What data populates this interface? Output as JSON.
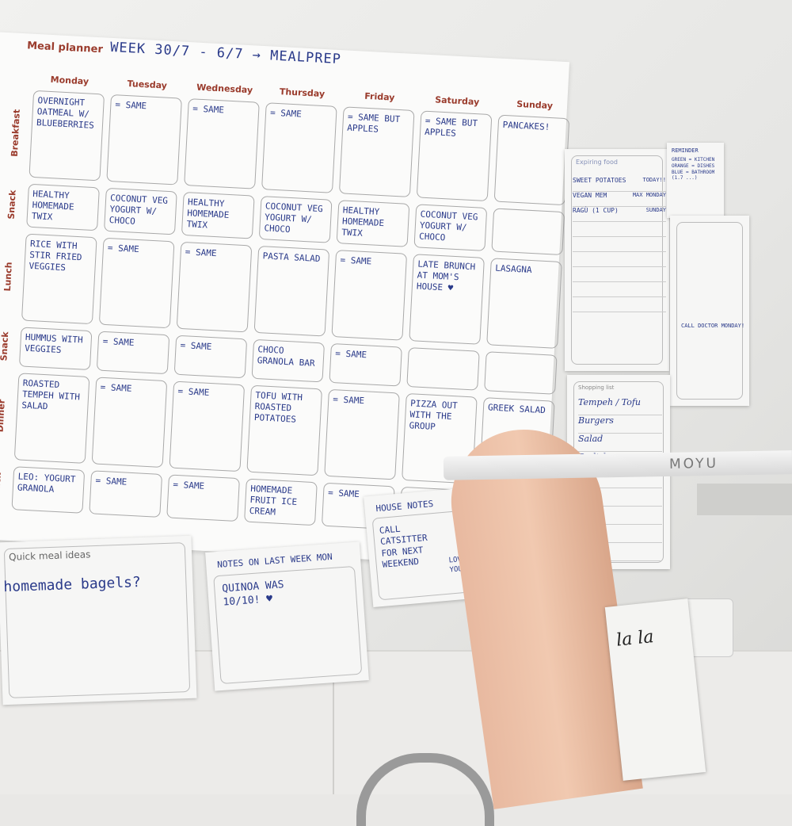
{
  "planner": {
    "title": "Meal planner",
    "week": "WEEK 30/7 - 6/7 → MEALPREP",
    "days": [
      "Monday",
      "Tuesday",
      "Wednesday",
      "Thursday",
      "Friday",
      "Saturday",
      "Sunday"
    ],
    "rows": [
      {
        "label": "Breakfast",
        "cells": [
          "Overnight oatmeal w/ blueberries",
          "= same",
          "= same",
          "= same",
          "= same but apples",
          "= same but apples",
          "Pancakes!"
        ]
      },
      {
        "label": "Snack",
        "cells": [
          "Healthy homemade twix",
          "Coconut veg yogurt w/ choco",
          "Healthy homemade twix",
          "Coconut veg yogurt w/ choco",
          "Healthy homemade twix",
          "Coconut veg yogurt w/ choco",
          ""
        ]
      },
      {
        "label": "Lunch",
        "cells": [
          "Rice with stir fried veggies",
          "= same",
          "= same",
          "Pasta salad",
          "= same",
          "Late brunch at mom's house ♥",
          "Lasagna"
        ]
      },
      {
        "label": "Snack",
        "cells": [
          "Hummus with veggies",
          "= same",
          "= same",
          "Choco granola bar",
          "= same",
          "",
          ""
        ]
      },
      {
        "label": "Dinner",
        "cells": [
          "Roasted tempeh with salad",
          "= same",
          "= same",
          "Tofu with roasted potatoes",
          "= same",
          "Pizza out with the group",
          "Greek salad"
        ]
      },
      {
        "label": "Snack",
        "cells": [
          "Leo: yogurt granola",
          "= same",
          "= same",
          "Homemade fruit ice cream",
          "= same",
          "",
          ""
        ]
      }
    ]
  },
  "quick_meal_ideas": {
    "label": "Quick meal ideas",
    "text": "homemade bagels?"
  },
  "notes_last_week": {
    "label": "NOTES ON LAST WEEK MON",
    "text": "QUINOA WAS 10/10! ♥"
  },
  "house_notes": {
    "label": "HOUSE NOTES",
    "text": "CALL CATSITTER FOR NEXT WEEKEND",
    "sign": "LOVE YOU"
  },
  "expiring_food": {
    "label": "Expiring food",
    "items": [
      {
        "name": "SWEET POTATOES",
        "when": "TODAY!!"
      },
      {
        "name": "VEGAN MEM",
        "when": "MAX MONDAY"
      },
      {
        "name": "RAGÙ (1 CUP)",
        "when": "SUNDAY"
      }
    ]
  },
  "reminder": {
    "label": "REMINDER",
    "lines": [
      "GREEN = KITCHEN",
      "ORANGE = DISHES",
      "BLUE = BATHROOM (1.7 ...)"
    ]
  },
  "side_note": {
    "text": "CALL DOCTOR MONDAY!"
  },
  "shopping_list": {
    "label": "Shopping list",
    "items": [
      "Tempeh / Tofu",
      "Burgers",
      "Salad",
      "Radish"
    ]
  },
  "pen": {
    "brand": "MOYU"
  },
  "mug": {
    "text": "la la"
  },
  "colors": {
    "ink": "#2a3a8a",
    "header": "#9a3b2c",
    "board": "#fbfbfa"
  }
}
